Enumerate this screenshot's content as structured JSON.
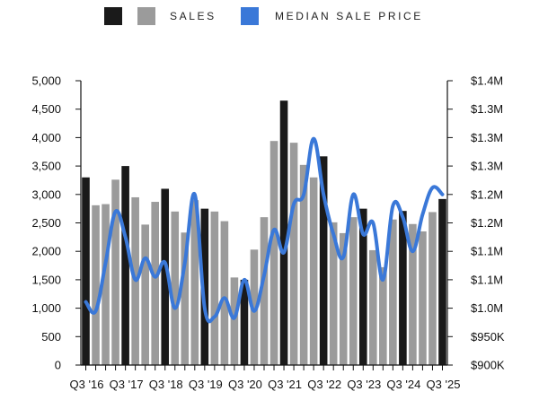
{
  "legend": {
    "sales_label": "SALES",
    "price_label": "MEDIAN SALE PRICE"
  },
  "colors": {
    "q3_bar": "#1a1a1a",
    "other_bar": "#9b9b9b",
    "price_line": "#3a78d8",
    "axis": "#111111"
  },
  "chart_data": {
    "type": "bar",
    "left_axis": {
      "ylim": [
        0,
        5000
      ],
      "ticks": [
        "0",
        "500",
        "1,000",
        "1,500",
        "2,000",
        "2,500",
        "3,000",
        "3,500",
        "4,000",
        "4,500",
        "5,000"
      ]
    },
    "right_axis": {
      "ylim": [
        900000,
        1400000
      ],
      "tick_values": [
        900000,
        950000,
        1000000,
        1050000,
        1100000,
        1150000,
        1200000,
        1250000,
        1300000,
        1350000,
        1400000
      ],
      "ticks": [
        "$900K",
        "$950K",
        "$1.0M",
        "$1.1M",
        "$1.1M",
        "$1.2M",
        "$1.2M",
        "$1.3M",
        "$1.3M",
        "$1.3M",
        "$1.4M"
      ]
    },
    "x_tick_labels": [
      "Q3 '16",
      "Q3 '17",
      "Q3 '18",
      "Q3 '19",
      "Q3 '20",
      "Q3 '21",
      "Q3 '22",
      "Q3 '23",
      "Q3 '24",
      "Q3 '25"
    ],
    "categories": [
      "Q3 '16",
      "Q4 '16",
      "Q1 '17",
      "Q2 '17",
      "Q3 '17",
      "Q4 '17",
      "Q1 '18",
      "Q2 '18",
      "Q3 '18",
      "Q4 '18",
      "Q1 '19",
      "Q2 '19",
      "Q3 '19",
      "Q4 '19",
      "Q1 '20",
      "Q2 '20",
      "Q3 '20",
      "Q4 '20",
      "Q1 '21",
      "Q2 '21",
      "Q3 '21",
      "Q4 '21",
      "Q1 '22",
      "Q2 '22",
      "Q3 '22",
      "Q4 '22",
      "Q1 '23",
      "Q2 '23",
      "Q3 '23",
      "Q4 '23",
      "Q1 '24",
      "Q2 '24",
      "Q3 '24",
      "Q4 '24",
      "Q1 '25",
      "Q2 '25",
      "Q3 '25"
    ],
    "series": [
      {
        "name": "SALES",
        "kind": "bar",
        "axis": "left",
        "values": [
          3300,
          2810,
          2830,
          3260,
          3500,
          2950,
          2470,
          2870,
          3100,
          2700,
          2330,
          2900,
          2750,
          2700,
          2530,
          1540,
          1500,
          2030,
          2600,
          3940,
          4650,
          3910,
          3520,
          3300,
          3670,
          2510,
          2320,
          2600,
          2750,
          2020,
          1720,
          2560,
          2710,
          2480,
          2350,
          2690,
          2920
        ]
      },
      {
        "name": "MEDIAN SALE PRICE",
        "kind": "line",
        "axis": "right",
        "values": [
          1011000,
          995000,
          1080000,
          1170000,
          1125000,
          1050000,
          1088000,
          1055000,
          1080000,
          1000000,
          1080000,
          1200000,
          1000000,
          985000,
          1018000,
          983000,
          1050000,
          995000,
          1058000,
          1138000,
          1098000,
          1183000,
          1200000,
          1298000,
          1200000,
          1130000,
          1090000,
          1200000,
          1130000,
          1150000,
          1050000,
          1180000,
          1160000,
          1100000,
          1165000,
          1212000,
          1200000
        ]
      }
    ],
    "grid": false,
    "legend_position": "top"
  }
}
